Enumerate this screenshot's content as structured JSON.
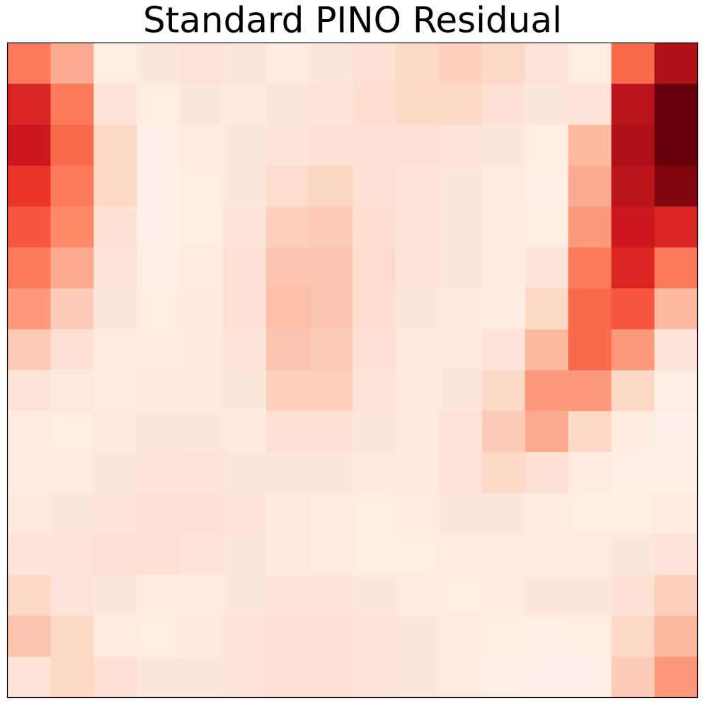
{
  "chart_data": {
    "type": "heatmap",
    "title": "Standard PINO Residual",
    "colormap": "Reds",
    "zlim": [
      0,
      1
    ],
    "z": [
      [
        0.45,
        0.3,
        0.05,
        0.08,
        0.1,
        0.08,
        0.06,
        0.08,
        0.12,
        0.15,
        0.18,
        0.15,
        0.1,
        0.05,
        0.5,
        0.85
      ],
      [
        0.7,
        0.45,
        0.1,
        0.05,
        0.08,
        0.07,
        0.08,
        0.1,
        0.13,
        0.15,
        0.15,
        0.12,
        0.08,
        0.1,
        0.8,
        1.0
      ],
      [
        0.75,
        0.5,
        0.15,
        0.03,
        0.06,
        0.08,
        0.1,
        0.12,
        0.12,
        0.12,
        0.1,
        0.08,
        0.05,
        0.25,
        0.85,
        1.0
      ],
      [
        0.65,
        0.45,
        0.15,
        0.03,
        0.05,
        0.08,
        0.14,
        0.16,
        0.12,
        0.1,
        0.08,
        0.06,
        0.04,
        0.3,
        0.8,
        0.95
      ],
      [
        0.55,
        0.4,
        0.12,
        0.03,
        0.05,
        0.1,
        0.18,
        0.2,
        0.13,
        0.1,
        0.08,
        0.06,
        0.05,
        0.35,
        0.75,
        0.7
      ],
      [
        0.45,
        0.3,
        0.1,
        0.04,
        0.06,
        0.12,
        0.22,
        0.22,
        0.14,
        0.1,
        0.08,
        0.06,
        0.1,
        0.45,
        0.7,
        0.45
      ],
      [
        0.35,
        0.2,
        0.08,
        0.05,
        0.07,
        0.12,
        0.24,
        0.22,
        0.13,
        0.08,
        0.07,
        0.06,
        0.15,
        0.5,
        0.55,
        0.25
      ],
      [
        0.2,
        0.12,
        0.06,
        0.06,
        0.07,
        0.1,
        0.22,
        0.2,
        0.12,
        0.07,
        0.07,
        0.1,
        0.25,
        0.5,
        0.35,
        0.1
      ],
      [
        0.1,
        0.07,
        0.06,
        0.07,
        0.07,
        0.08,
        0.18,
        0.18,
        0.1,
        0.07,
        0.08,
        0.15,
        0.35,
        0.35,
        0.15,
        0.04
      ],
      [
        0.06,
        0.05,
        0.07,
        0.08,
        0.08,
        0.07,
        0.12,
        0.12,
        0.08,
        0.07,
        0.1,
        0.2,
        0.3,
        0.15,
        0.06,
        0.03
      ],
      [
        0.06,
        0.06,
        0.08,
        0.09,
        0.1,
        0.08,
        0.08,
        0.08,
        0.07,
        0.07,
        0.1,
        0.15,
        0.12,
        0.06,
        0.04,
        0.04
      ],
      [
        0.07,
        0.08,
        0.1,
        0.12,
        0.12,
        0.1,
        0.07,
        0.06,
        0.05,
        0.06,
        0.08,
        0.08,
        0.06,
        0.05,
        0.05,
        0.06
      ],
      [
        0.1,
        0.1,
        0.12,
        0.12,
        0.1,
        0.08,
        0.07,
        0.06,
        0.05,
        0.05,
        0.06,
        0.06,
        0.06,
        0.06,
        0.08,
        0.1
      ],
      [
        0.15,
        0.1,
        0.08,
        0.06,
        0.06,
        0.08,
        0.1,
        0.1,
        0.08,
        0.06,
        0.05,
        0.06,
        0.08,
        0.08,
        0.12,
        0.18
      ],
      [
        0.22,
        0.15,
        0.06,
        0.05,
        0.07,
        0.1,
        0.12,
        0.12,
        0.1,
        0.08,
        0.06,
        0.05,
        0.04,
        0.05,
        0.15,
        0.25
      ],
      [
        0.1,
        0.15,
        0.12,
        0.08,
        0.08,
        0.1,
        0.12,
        0.12,
        0.1,
        0.08,
        0.06,
        0.04,
        0.03,
        0.03,
        0.2,
        0.35
      ]
    ]
  }
}
